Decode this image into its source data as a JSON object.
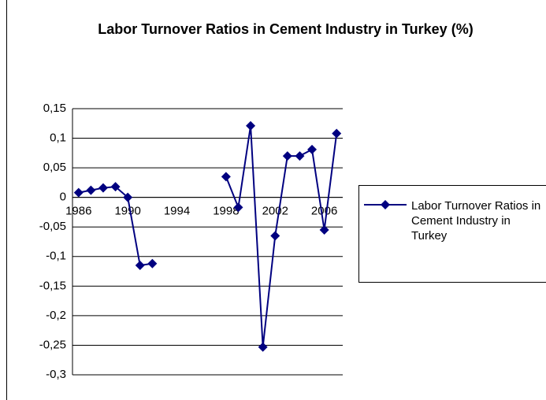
{
  "chart_data": {
    "type": "line",
    "title": "Labor Turnover Ratios in Cement Industry in Turkey (%)",
    "categories": [
      "1986",
      null,
      null,
      null,
      "1990",
      null,
      null,
      null,
      "1994",
      null,
      null,
      null,
      "1998",
      null,
      null,
      null,
      "2002",
      null,
      null,
      null,
      "2006",
      null
    ],
    "series": [
      {
        "name": "Labor Turnover Ratios in Cement Industry in Turkey",
        "color": "#000080",
        "values": [
          0.008,
          0.012,
          0.016,
          0.018,
          0,
          -0.115,
          -0.112,
          null,
          null,
          null,
          null,
          null,
          0.035,
          -0.017,
          0.121,
          -0.253,
          -0.065,
          0.07,
          0.07,
          0.081,
          -0.055,
          0.108
        ]
      }
    ],
    "ylim": [
      -0.3,
      0.15
    ],
    "yticks": [
      {
        "value": -0.3,
        "label": "-0,3"
      },
      {
        "value": -0.25,
        "label": "-0,25"
      },
      {
        "value": -0.2,
        "label": "-0,2"
      },
      {
        "value": -0.15,
        "label": "-0,15"
      },
      {
        "value": -0.1,
        "label": "-0,1"
      },
      {
        "value": -0.05,
        "label": "-0,05"
      },
      0,
      {
        "value": 0.05,
        "label": "0,05"
      },
      {
        "value": 0.1,
        "label": "0,1"
      },
      {
        "value": 0.15,
        "label": "0,15"
      }
    ],
    "grid": true,
    "legend": "right"
  }
}
